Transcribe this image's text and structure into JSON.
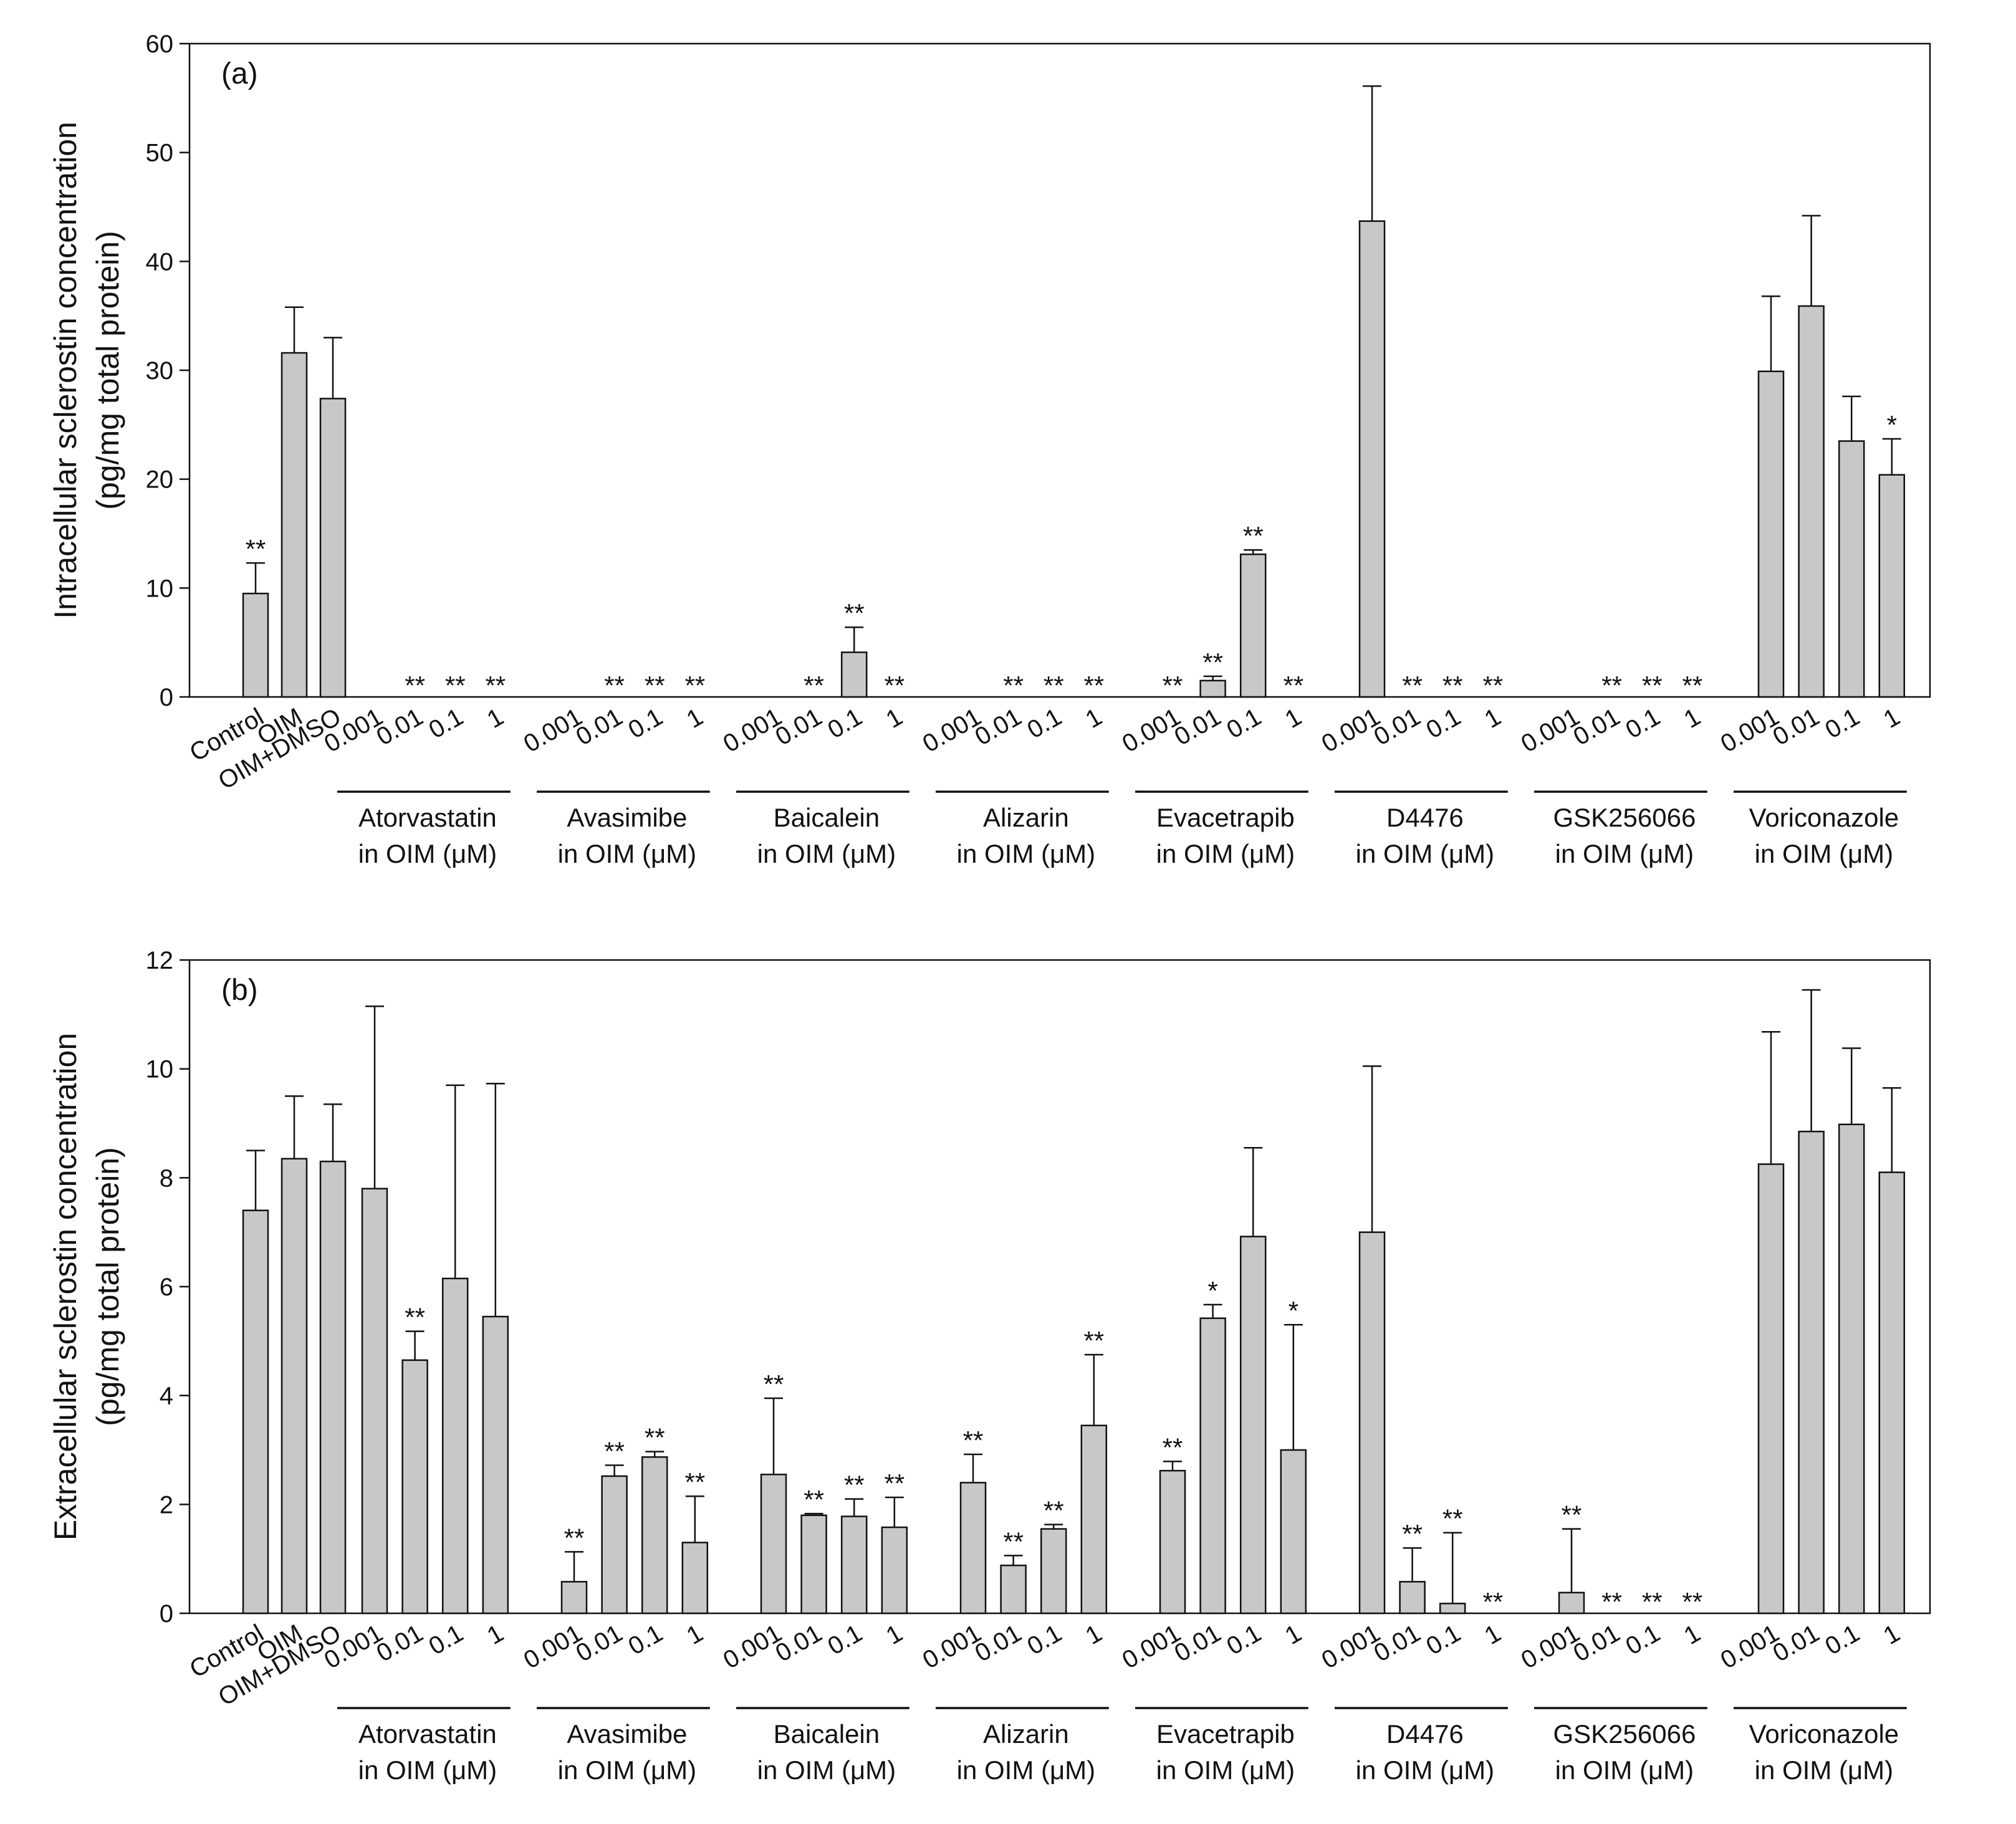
{
  "colors": {
    "bar_fill": "#c8c8c8",
    "stroke": "#111111"
  },
  "chart_data": [
    {
      "type": "bar",
      "panel_label": "(a)",
      "ylabel_line1": "Intracellular sclerostin concentration",
      "ylabel_line2": "(pg/mg total protein)",
      "ylim": [
        0,
        60
      ],
      "yticks": [
        "0",
        "10",
        "20",
        "30",
        "40",
        "50",
        "60"
      ],
      "categories": [
        "Control",
        "OIM",
        "OIM+DMSO",
        "0.001",
        "0.01",
        "0.1",
        "1",
        "0.001",
        "0.01",
        "0.1",
        "1",
        "0.001",
        "0.01",
        "0.1",
        "1",
        "0.001",
        "0.01",
        "0.1",
        "1",
        "0.001",
        "0.01",
        "0.1",
        "1",
        "0.001",
        "0.01",
        "0.1",
        "1",
        "0.001",
        "0.01",
        "0.1",
        "1",
        "0.001",
        "0.01",
        "0.1",
        "1"
      ],
      "values": [
        9.5,
        31.6,
        27.4,
        0,
        0,
        0,
        0,
        0,
        0,
        0,
        0,
        0,
        0,
        4.1,
        0,
        0,
        0,
        0,
        0,
        0,
        1.5,
        13.1,
        0,
        43.7,
        0,
        0,
        0,
        0,
        0,
        0,
        0,
        29.9,
        35.9,
        23.5,
        20.4
      ],
      "errors": [
        2.8,
        4.2,
        5.6,
        0,
        0,
        0,
        0,
        0,
        0,
        0,
        0,
        0,
        0,
        2.3,
        0,
        0,
        0,
        0,
        0,
        0,
        0.4,
        0.4,
        0,
        12.4,
        0,
        0,
        0,
        0,
        0,
        0,
        0,
        6.9,
        8.3,
        4.1,
        3.3
      ],
      "significance": [
        "**",
        "",
        "",
        "",
        "**",
        "**",
        "**",
        "",
        "**",
        "**",
        "**",
        "",
        "**",
        "**",
        "**",
        "",
        "**",
        "**",
        "**",
        "**",
        "**",
        "**",
        "**",
        "",
        "**",
        "**",
        "**",
        "",
        "**",
        "**",
        "**",
        "",
        "",
        "",
        "*"
      ],
      "groups": [
        {
          "name": "Atorvastatin",
          "unit": "in OIM (μM)"
        },
        {
          "name": "Avasimibe",
          "unit": "in OIM (μM)"
        },
        {
          "name": "Baicalein",
          "unit": "in OIM (μM)"
        },
        {
          "name": "Alizarin",
          "unit": "in OIM (μM)"
        },
        {
          "name": "Evacetrapib",
          "unit": "in OIM (μM)"
        },
        {
          "name": "D4476",
          "unit": "in OIM (μM)"
        },
        {
          "name": "GSK256066",
          "unit": "in OIM (μM)"
        },
        {
          "name": "Voriconazole",
          "unit": "in OIM (μM)"
        }
      ]
    },
    {
      "type": "bar",
      "panel_label": "(b)",
      "ylabel_line1": "Extracellular sclerostin concentration",
      "ylabel_line2": "(pg/mg total protein)",
      "ylim": [
        0,
        12
      ],
      "yticks": [
        "0",
        "2",
        "4",
        "6",
        "8",
        "10",
        "12"
      ],
      "categories": [
        "Control",
        "OIM",
        "OIM+DMSO",
        "0.001",
        "0.01",
        "0.1",
        "1",
        "0.001",
        "0.01",
        "0.1",
        "1",
        "0.001",
        "0.01",
        "0.1",
        "1",
        "0.001",
        "0.01",
        "0.1",
        "1",
        "0.001",
        "0.01",
        "0.1",
        "1",
        "0.001",
        "0.01",
        "0.1",
        "1",
        "0.001",
        "0.01",
        "0.1",
        "1",
        "0.001",
        "0.01",
        "0.1",
        "1"
      ],
      "values": [
        7.4,
        8.35,
        8.3,
        7.8,
        4.65,
        6.15,
        5.45,
        0.58,
        2.52,
        2.87,
        1.3,
        2.55,
        1.8,
        1.78,
        1.58,
        2.4,
        0.88,
        1.55,
        3.45,
        2.62,
        5.42,
        6.92,
        3.0,
        7.0,
        0.58,
        0.18,
        0,
        0.38,
        0,
        0,
        0,
        8.25,
        8.85,
        8.98,
        8.1
      ],
      "errors": [
        1.1,
        1.15,
        1.05,
        3.35,
        0.53,
        3.55,
        4.28,
        0.55,
        0.2,
        0.1,
        0.85,
        1.4,
        0.03,
        0.32,
        0.55,
        0.52,
        0.18,
        0.08,
        1.3,
        0.17,
        0.25,
        1.63,
        2.3,
        3.05,
        0.62,
        1.3,
        0,
        1.17,
        0,
        0,
        0,
        2.43,
        2.6,
        1.4,
        1.55
      ],
      "significance": [
        "",
        "",
        "",
        "",
        "**",
        "",
        "",
        "**",
        "**",
        "**",
        "**",
        "**",
        "**",
        "**",
        "**",
        "**",
        "**",
        "**",
        "**",
        "**",
        "*",
        "",
        "*",
        "",
        "**",
        "**",
        "**",
        "**",
        "**",
        "**",
        "**",
        "",
        "",
        "",
        ""
      ],
      "groups": [
        {
          "name": "Atorvastatin",
          "unit": "in OIM (μM)"
        },
        {
          "name": "Avasimibe",
          "unit": "in OIM (μM)"
        },
        {
          "name": "Baicalein",
          "unit": "in OIM (μM)"
        },
        {
          "name": "Alizarin",
          "unit": "in OIM (μM)"
        },
        {
          "name": "Evacetrapib",
          "unit": "in OIM (μM)"
        },
        {
          "name": "D4476",
          "unit": "in OIM (μM)"
        },
        {
          "name": "GSK256066",
          "unit": "in OIM (μM)"
        },
        {
          "name": "Voriconazole",
          "unit": "in OIM (μM)"
        }
      ]
    }
  ]
}
